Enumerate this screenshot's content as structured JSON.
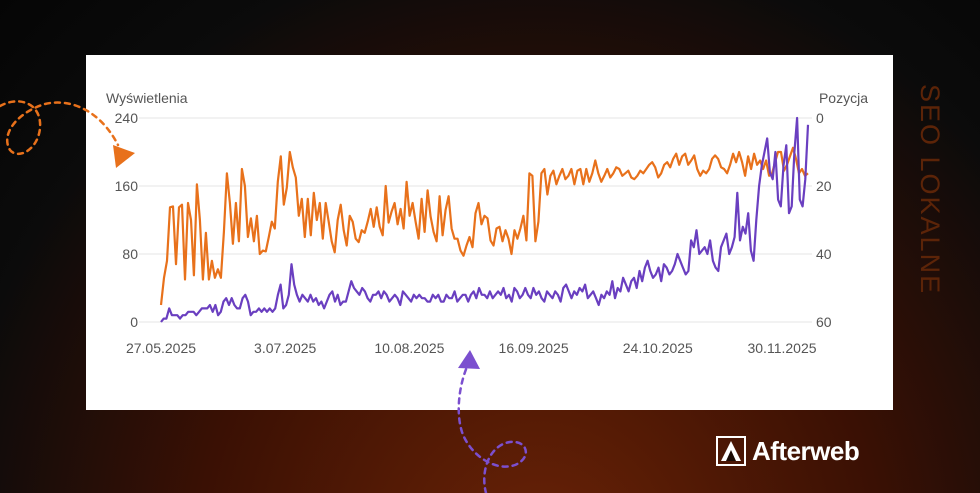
{
  "side_title": "SEO LOKALNE",
  "brand": {
    "name": "Afterweb"
  },
  "colors": {
    "impressions": "#e8711b",
    "position": "#6a3fc0",
    "grid": "#e6e6e6",
    "axis_text": "#555555",
    "side_title": "#5c2408",
    "deco_orange": "#e8711b",
    "deco_purple": "#7b4fcf"
  },
  "chart_data": {
    "type": "line",
    "x_tick_labels": [
      "27.05.2025",
      "3.07.2025",
      "10.08.2025",
      "16.09.2025",
      "24.10.2025",
      "30.11.2025"
    ],
    "y_left": {
      "label": "Wyświetlenia",
      "ticks": [
        "0",
        "80",
        "160",
        "240"
      ],
      "range": [
        0,
        240
      ]
    },
    "y_right": {
      "label": "Pozycja",
      "ticks": [
        "0",
        "20",
        "40",
        "60"
      ],
      "range": [
        0,
        60
      ],
      "inverted": true
    },
    "x_range_days": 197,
    "series": [
      {
        "axis": "left",
        "values": [
          20,
          52,
          72,
          135,
          136,
          68,
          135,
          138,
          50,
          140,
          120,
          55,
          162,
          120,
          50,
          105,
          50,
          72,
          52,
          62,
          52,
          106,
          175,
          140,
          92,
          140,
          95,
          180,
          160,
          100,
          122,
          95,
          125,
          80,
          84,
          83,
          100,
          118,
          110,
          165,
          195,
          138,
          158,
          200,
          182,
          170,
          125,
          145,
          100,
          145,
          102,
          152,
          120,
          140,
          98,
          140,
          118,
          95,
          82,
          120,
          138,
          108,
          90,
          125,
          118,
          98,
          94,
          108,
          105,
          118,
          133,
          112,
          135,
          112,
          102,
          160,
          117,
          130,
          140,
          115,
          133,
          110,
          165,
          125,
          140,
          118,
          98,
          145,
          106,
          155,
          124,
          106,
          95,
          148,
          102,
          132,
          148,
          110,
          98,
          98,
          84,
          78,
          90,
          100,
          88,
          128,
          140,
          115,
          125,
          122,
          96,
          90,
          110,
          112,
          95,
          108,
          98,
          80,
          108,
          98,
          110,
          125,
          96,
          175,
          172,
          95,
          118,
          175,
          180,
          150,
          172,
          178,
          162,
          172,
          180,
          168,
          172,
          180,
          162,
          178,
          180,
          162,
          180,
          165,
          175,
          190,
          175,
          165,
          172,
          180,
          170,
          175,
          182,
          180,
          172,
          175,
          178,
          170,
          168,
          172,
          178,
          175,
          180,
          185,
          188,
          182,
          170,
          175,
          185,
          188,
          182,
          192,
          198,
          185,
          195,
          198,
          185,
          190,
          196,
          180,
          172,
          178,
          175,
          180,
          192,
          196,
          192,
          182,
          180,
          175,
          185,
          198,
          188,
          200,
          188,
          172,
          195,
          180,
          198,
          185,
          190,
          180,
          190,
          172,
          175,
          188,
          200,
          200,
          178,
          185,
          195,
          205,
          192,
          175,
          180,
          172,
          175
        ],
        "step": 0.915
      },
      {
        "axis": "right",
        "values": [
          60,
          59,
          59,
          56,
          58,
          58,
          58,
          59,
          58,
          58,
          57,
          57,
          57,
          58,
          57,
          56,
          56,
          56,
          55,
          57,
          55,
          58,
          57,
          54,
          53,
          55,
          53,
          55,
          56,
          56,
          53,
          52,
          54,
          58,
          57,
          57,
          56,
          57,
          56,
          57,
          56,
          57,
          56,
          52,
          49,
          56,
          55,
          52,
          43,
          49,
          52,
          54,
          52,
          53,
          54,
          52,
          54,
          53,
          55,
          54,
          56,
          54,
          52,
          51,
          54,
          52,
          55,
          54,
          54,
          51,
          48,
          50,
          51,
          52,
          50,
          51,
          53,
          54,
          52,
          52,
          51,
          53,
          51,
          52,
          54,
          53,
          52,
          53,
          55,
          51,
          52,
          53,
          54,
          52,
          53,
          52,
          53,
          53,
          54,
          54,
          52,
          53,
          52,
          54,
          54,
          52,
          53,
          53,
          51,
          54,
          53,
          52,
          52,
          54,
          52,
          51,
          53,
          50,
          52,
          52,
          53,
          51,
          53,
          52,
          51,
          52,
          50,
          53,
          52,
          54,
          50,
          51,
          53,
          52,
          50,
          52,
          53,
          50,
          52,
          51,
          53,
          54,
          51,
          52,
          53,
          51,
          52,
          54,
          50,
          49,
          51,
          53,
          51,
          52,
          50,
          51,
          49,
          53,
          52,
          51,
          53,
          55,
          52,
          53,
          51,
          52,
          48,
          53,
          50,
          51,
          47,
          49,
          51,
          48,
          47,
          50,
          45,
          48,
          44,
          42,
          45,
          47,
          46,
          44,
          48,
          43,
          44,
          46,
          45,
          43,
          40,
          42,
          44,
          46,
          45,
          36,
          38,
          33,
          40,
          39,
          38,
          40,
          36,
          42,
          44,
          45,
          38,
          36,
          34,
          40,
          38,
          35,
          22,
          36,
          32,
          34,
          28,
          39,
          42,
          30,
          20,
          14,
          10,
          6,
          16,
          18,
          10,
          24,
          26,
          14,
          8,
          28,
          26,
          10,
          0,
          24,
          26,
          18,
          2
        ],
        "step": 0.915
      }
    ],
    "grid": true
  }
}
